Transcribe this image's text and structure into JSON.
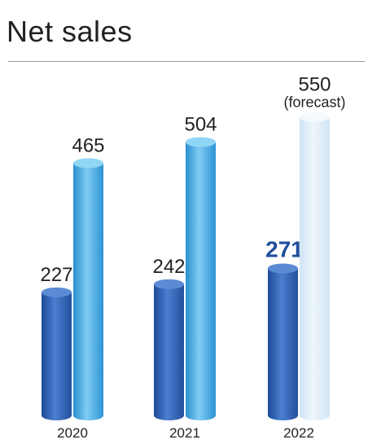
{
  "title": "Net sales",
  "chart_data": {
    "type": "bar",
    "title": "Net sales",
    "categories": [
      "2020",
      "2021",
      "2022"
    ],
    "series": [
      {
        "values": [
          227,
          242,
          271
        ]
      },
      {
        "values": [
          465,
          504,
          550
        ]
      }
    ],
    "annotations": [
      {
        "category": "2022",
        "series": 1,
        "text": "(forecast)"
      }
    ],
    "highlight": {
      "category": "2022",
      "series": 0
    },
    "ylim": [
      0,
      600
    ],
    "grid": false,
    "colors": {
      "series0": "#2f5fb2",
      "series1": "#3ba3dd",
      "forecast": "#dcecf8",
      "highlight_text": "#1d4f9c"
    }
  }
}
